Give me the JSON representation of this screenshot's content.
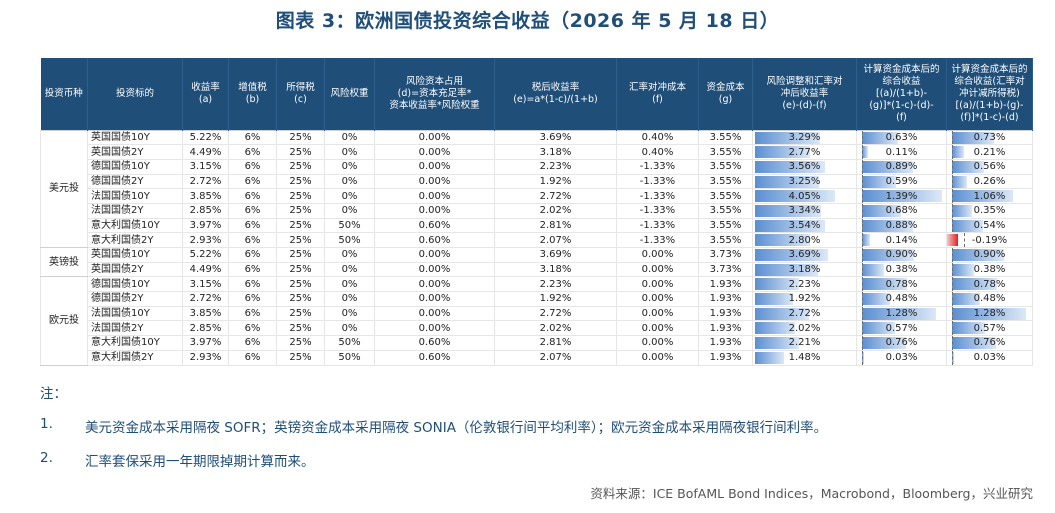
{
  "title": "图表 3：欧洲国债投资综合收益（2026 年 5 月 18 日）",
  "headers": [
    "投资币种",
    "投资标的",
    "收益率\n(a)",
    "增值税\n(b)",
    "所得税\n(c)",
    "风险权重",
    "风险资本占用\n(d)=资本充足率*\n资本收益率*风险权重",
    "税后收益率\n(e)=a*(1-c)/(1+b)",
    "汇率对冲成本\n(f)",
    "资金成本\n(g)",
    "风险调整和汇率对\n冲后收益率\n(e)-(d)-(f)",
    "计算资金成本后的\n综合收益\n[(a)/(1+b)-\n(g)]*(1-c)-(d)-\n(f)",
    "计算资金成本后的\n综合收益(汇率对\n冲计减所得税)\n[(a)/(1+b)-(g)-\n(f)]*(1-c)-(d)"
  ],
  "groups": [
    {
      "label": "美元投",
      "rows": [
        {
          "name": "英国国债10Y",
          "a": "5.22%",
          "b": "6%",
          "c": "25%",
          "w": "0%",
          "d": "0.00%",
          "e": "3.69%",
          "f": "0.40%",
          "g": "3.55%",
          "h": "3.29%",
          "i": "0.63%",
          "j": "0.73%"
        },
        {
          "name": "英国国债2Y",
          "a": "4.49%",
          "b": "6%",
          "c": "25%",
          "w": "0%",
          "d": "0.00%",
          "e": "3.18%",
          "f": "0.40%",
          "g": "3.55%",
          "h": "2.77%",
          "i": "0.11%",
          "j": "0.21%"
        },
        {
          "name": "德国国债10Y",
          "a": "3.15%",
          "b": "6%",
          "c": "25%",
          "w": "0%",
          "d": "0.00%",
          "e": "2.23%",
          "f": "-1.33%",
          "g": "3.55%",
          "h": "3.56%",
          "i": "0.89%",
          "j": "0.56%"
        },
        {
          "name": "德国国债2Y",
          "a": "2.72%",
          "b": "6%",
          "c": "25%",
          "w": "0%",
          "d": "0.00%",
          "e": "1.92%",
          "f": "-1.33%",
          "g": "3.55%",
          "h": "3.25%",
          "i": "0.59%",
          "j": "0.26%"
        },
        {
          "name": "法国国债10Y",
          "a": "3.85%",
          "b": "6%",
          "c": "25%",
          "w": "0%",
          "d": "0.00%",
          "e": "2.72%",
          "f": "-1.33%",
          "g": "3.55%",
          "h": "4.05%",
          "i": "1.39%",
          "j": "1.06%"
        },
        {
          "name": "法国国债2Y",
          "a": "2.85%",
          "b": "6%",
          "c": "25%",
          "w": "0%",
          "d": "0.00%",
          "e": "2.02%",
          "f": "-1.33%",
          "g": "3.55%",
          "h": "3.34%",
          "i": "0.68%",
          "j": "0.35%"
        },
        {
          "name": "意大利国债10Y",
          "a": "3.97%",
          "b": "6%",
          "c": "25%",
          "w": "50%",
          "d": "0.60%",
          "e": "2.81%",
          "f": "-1.33%",
          "g": "3.55%",
          "h": "3.54%",
          "i": "0.88%",
          "j": "0.54%"
        },
        {
          "name": "意大利国债2Y",
          "a": "2.93%",
          "b": "6%",
          "c": "25%",
          "w": "50%",
          "d": "0.60%",
          "e": "2.07%",
          "f": "-1.33%",
          "g": "3.55%",
          "h": "2.80%",
          "i": "0.14%",
          "j": "-0.19%"
        }
      ]
    },
    {
      "label": "英镑投",
      "rows": [
        {
          "name": "英国国债10Y",
          "a": "5.22%",
          "b": "6%",
          "c": "25%",
          "w": "0%",
          "d": "0.00%",
          "e": "3.69%",
          "f": "0.00%",
          "g": "3.73%",
          "h": "3.69%",
          "i": "0.90%",
          "j": "0.90%"
        },
        {
          "name": "英国国债2Y",
          "a": "4.49%",
          "b": "6%",
          "c": "25%",
          "w": "0%",
          "d": "0.00%",
          "e": "3.18%",
          "f": "0.00%",
          "g": "3.73%",
          "h": "3.18%",
          "i": "0.38%",
          "j": "0.38%"
        }
      ]
    },
    {
      "label": "欧元投",
      "rows": [
        {
          "name": "德国国债10Y",
          "a": "3.15%",
          "b": "6%",
          "c": "25%",
          "w": "0%",
          "d": "0.00%",
          "e": "2.23%",
          "f": "0.00%",
          "g": "1.93%",
          "h": "2.23%",
          "i": "0.78%",
          "j": "0.78%"
        },
        {
          "name": "德国国债2Y",
          "a": "2.72%",
          "b": "6%",
          "c": "25%",
          "w": "0%",
          "d": "0.00%",
          "e": "1.92%",
          "f": "0.00%",
          "g": "1.93%",
          "h": "1.92%",
          "i": "0.48%",
          "j": "0.48%"
        },
        {
          "name": "法国国债10Y",
          "a": "3.85%",
          "b": "6%",
          "c": "25%",
          "w": "0%",
          "d": "0.00%",
          "e": "2.72%",
          "f": "0.00%",
          "g": "1.93%",
          "h": "2.72%",
          "i": "1.28%",
          "j": "1.28%"
        },
        {
          "name": "法国国债2Y",
          "a": "2.85%",
          "b": "6%",
          "c": "25%",
          "w": "0%",
          "d": "0.00%",
          "e": "2.02%",
          "f": "0.00%",
          "g": "1.93%",
          "h": "2.02%",
          "i": "0.57%",
          "j": "0.57%"
        },
        {
          "name": "意大利国债10Y",
          "a": "3.97%",
          "b": "6%",
          "c": "25%",
          "w": "50%",
          "d": "0.60%",
          "e": "2.81%",
          "f": "0.00%",
          "g": "1.93%",
          "h": "2.21%",
          "i": "0.76%",
          "j": "0.76%"
        },
        {
          "name": "意大利国债2Y",
          "a": "2.93%",
          "b": "6%",
          "c": "25%",
          "w": "50%",
          "d": "0.60%",
          "e": "2.07%",
          "f": "0.00%",
          "g": "1.93%",
          "h": "1.48%",
          "i": "0.03%",
          "j": "0.03%"
        }
      ]
    }
  ],
  "bar_scale": {
    "h": 4.05,
    "i": 1.39,
    "j": 1.28
  },
  "colors": {
    "header_bg": "#1F4E79",
    "bar_pos": "#5b8fd1",
    "bar_neg": "#e02020",
    "title": "#1F4E79"
  },
  "notes": {
    "heading": "注：",
    "items": [
      {
        "num": "1.",
        "text": "美元资金成本采用隔夜 SOFR；英镑资金成本采用隔夜 SONIA（伦敦银行间平均利率）；欧元资金成本采用隔夜银行间利率。"
      },
      {
        "num": "2.",
        "text": "汇率套保采用一年期限掉期计算而来。"
      }
    ]
  },
  "source": "资料来源：ICE BofAML Bond Indices，Macrobond，Bloomberg，兴业研究"
}
